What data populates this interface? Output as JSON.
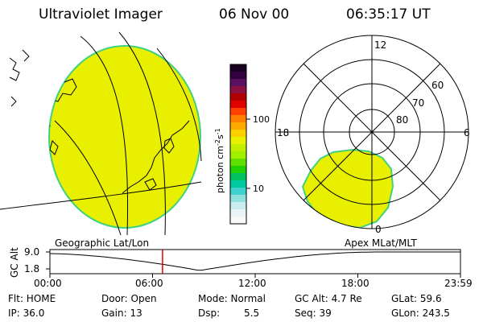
{
  "header": {
    "instrument": "Ultraviolet Imager",
    "date": "06 Nov 00",
    "time": "06:35:17 UT"
  },
  "map_labels": {
    "geographic": "Geographic Lat/Lon",
    "apex": "Apex MLat/MLT"
  },
  "colorbar": {
    "unit_label": "photon cm",
    "unit_sup1": "-2",
    "unit_mid": "s",
    "unit_sup2": "-1",
    "tick_100": "100",
    "tick_10": "10",
    "colors": [
      "#1a0020",
      "#300040",
      "#5a1060",
      "#8a1040",
      "#b00000",
      "#e00000",
      "#ff4000",
      "#ff8000",
      "#ffa800",
      "#ffd000",
      "#e8f000",
      "#c0f000",
      "#a0f000",
      "#60e000",
      "#20d000",
      "#00c060",
      "#00c8a0",
      "#40d0d0",
      "#90e0e0",
      "#c8ecf0",
      "#e8f4f8",
      "#f8f8f8"
    ]
  },
  "polar_plot": {
    "mlt_12": "12",
    "mlt_18": "18",
    "mlt_6": "6",
    "mlt_0": "0",
    "lat_60": "60",
    "lat_70": "70",
    "lat_80": "80"
  },
  "altitude_plot": {
    "axis_label": "GC Alt",
    "y_top": "9.0",
    "y_bottom": "1.8",
    "x_ticks": [
      "00:00",
      "06:00",
      "12:00",
      "18:00",
      "23:59"
    ],
    "marker_time": "06:35"
  },
  "info": {
    "flt": "Flt: HOME",
    "ip": "IP: 36.0",
    "door": "Door: Open",
    "gain": "Gain: 13",
    "mode": "Mode: Normal",
    "dsp_label": "Dsp:",
    "dsp_value": "5.5",
    "gc_alt": "GC Alt: 4.7 Re",
    "seq": "Seq: 39",
    "glat": "GLat:  59.6",
    "glon": "GLon: 243.5"
  },
  "colors": {
    "aurora_fill": "#e8f000",
    "aurora_edge": "#40d080",
    "marker": "#e00000"
  }
}
